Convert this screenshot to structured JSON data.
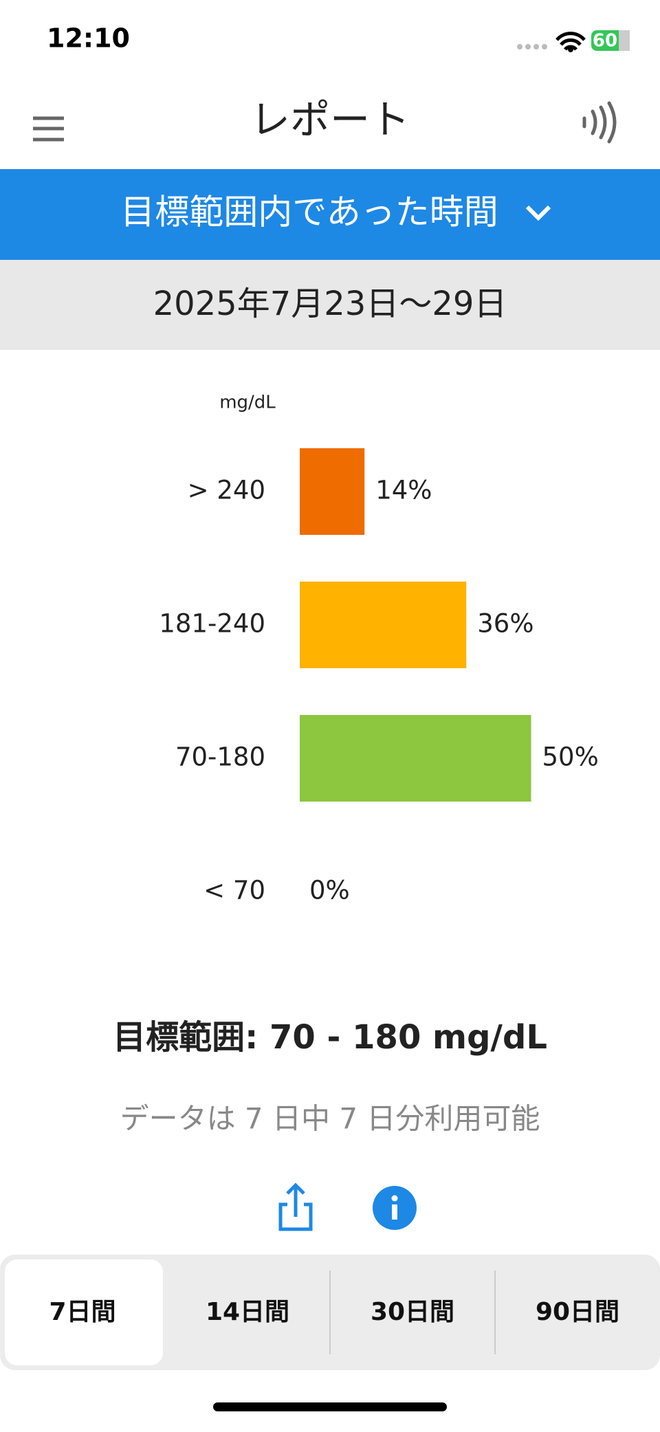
{
  "status": {
    "time": "12:10",
    "battery": "60"
  },
  "header": {
    "title": "レポート"
  },
  "report_selector": {
    "title": "目標範囲内であった時間"
  },
  "date_range": "2025年7月23日〜29日",
  "chart_data": {
    "type": "bar",
    "ylabel": "mg/dL",
    "categories": [
      "> 240",
      "181-240",
      "70-180",
      "< 70"
    ],
    "values": [
      14,
      36,
      50,
      0
    ],
    "value_labels": [
      "14%",
      "36%",
      "50%",
      "0%"
    ],
    "colors": [
      "#ef6c00",
      "#ffb300",
      "#8dc63f",
      "#e53935"
    ]
  },
  "target_range": "目標範囲: 70 - 180 mg/dL",
  "availability": "データは 7 日中 7 日分利用可能",
  "periods": {
    "options": [
      "7日間",
      "14日間",
      "30日間",
      "90日間"
    ],
    "selected": 0
  }
}
